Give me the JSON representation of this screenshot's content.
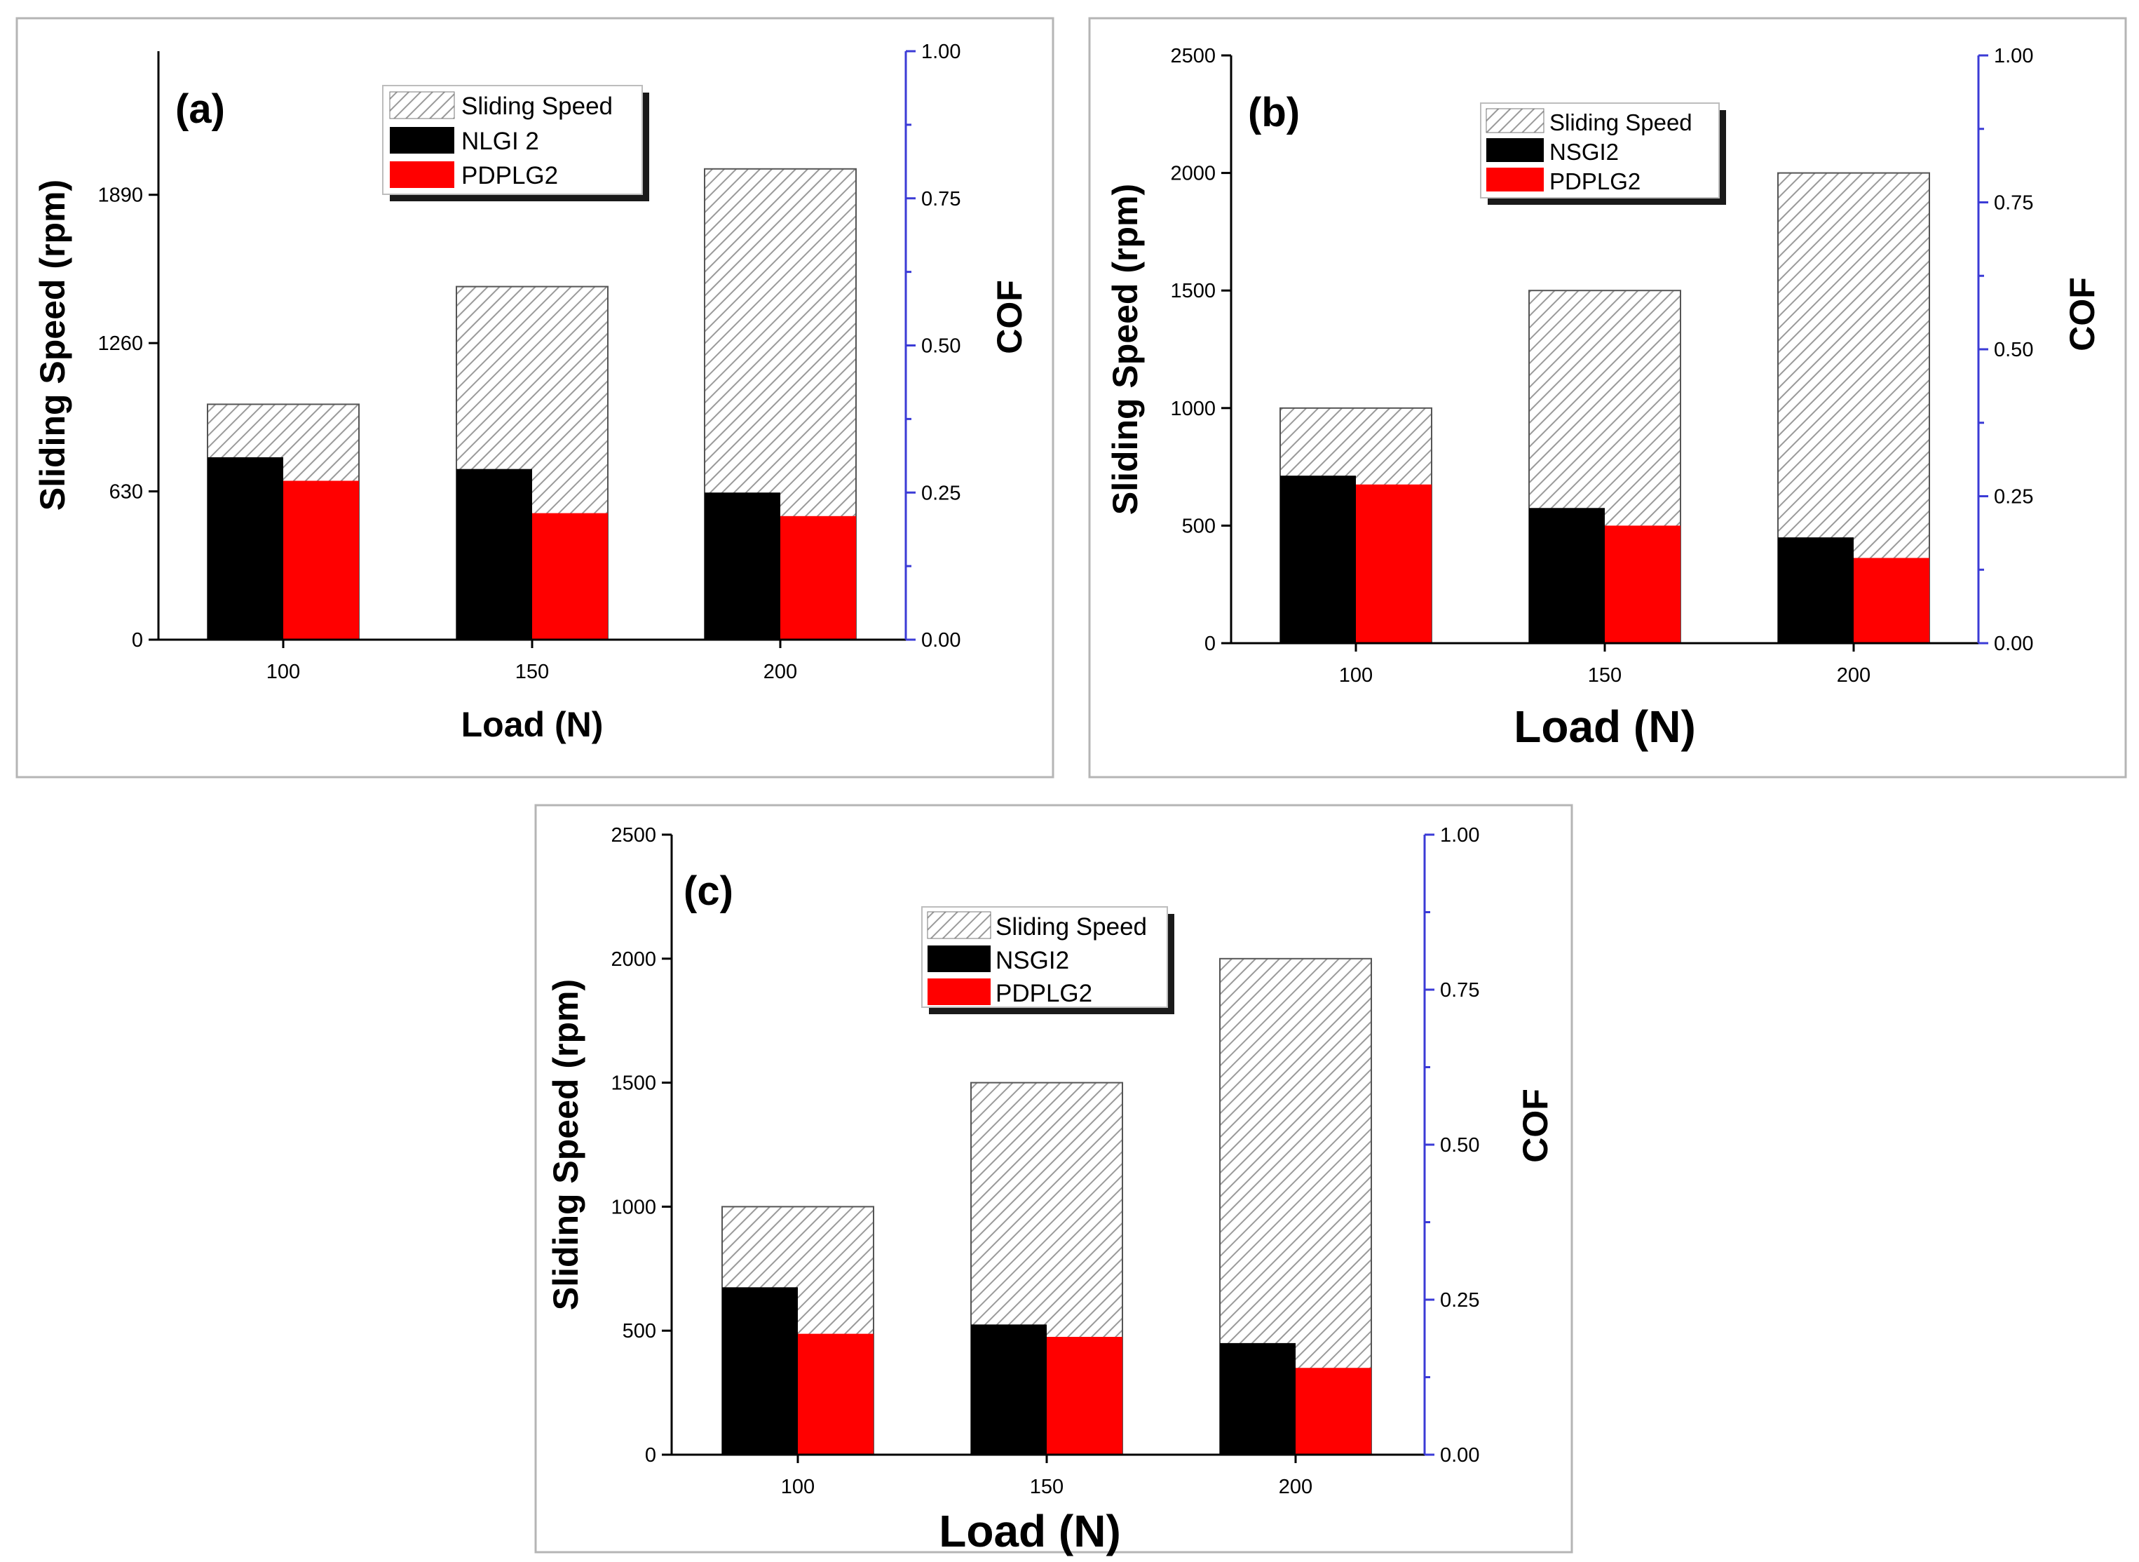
{
  "colors": {
    "speed_hatch": "#9a9a9a",
    "grease_a": "#000000",
    "grease_b": "#ff0000",
    "cof_axis": "#3b3bd6"
  },
  "chart_data": [
    {
      "type": "bar",
      "panel_label": "(a)",
      "categories": [
        "100",
        "150",
        "200"
      ],
      "xlabel": "Load (N)",
      "ylabel": "Sliding Speed (rpm)",
      "y2label": "COF",
      "ylim": [
        0,
        2500
      ],
      "y_ticks": [
        "0",
        "630",
        "1260",
        "1890"
      ],
      "y_tick_values": [
        0,
        630,
        1260,
        1890
      ],
      "y2lim": [
        0,
        1.0
      ],
      "y2_ticks": [
        "0.00",
        "0.25",
        "0.50",
        "0.75",
        "1.00"
      ],
      "y2_tick_values": [
        0,
        0.25,
        0.5,
        0.75,
        1.0
      ],
      "legend": [
        "Sliding Speed",
        "NLGI 2",
        "PDPLG2"
      ],
      "series": [
        {
          "name": "Sliding Speed",
          "axis": "left",
          "values": [
            1000,
            1500,
            2000
          ]
        },
        {
          "name": "NLGI 2",
          "axis": "right",
          "values": [
            0.31,
            0.29,
            0.25
          ]
        },
        {
          "name": "PDPLG2",
          "axis": "right",
          "values": [
            0.27,
            0.215,
            0.21
          ]
        }
      ]
    },
    {
      "type": "bar",
      "panel_label": "(b)",
      "categories": [
        "100",
        "150",
        "200"
      ],
      "xlabel": "Load (N)",
      "ylabel": "Sliding Speed (rpm)",
      "y2label": "COF",
      "ylim": [
        0,
        2500
      ],
      "y_ticks": [
        "0",
        "500",
        "1000",
        "1500",
        "2000",
        "2500"
      ],
      "y_tick_values": [
        0,
        500,
        1000,
        1500,
        2000,
        2500
      ],
      "y2lim": [
        0,
        1.0
      ],
      "y2_ticks": [
        "0.00",
        "0.25",
        "0.50",
        "0.75",
        "1.00"
      ],
      "y2_tick_values": [
        0,
        0.25,
        0.5,
        0.75,
        1.0
      ],
      "legend": [
        "Sliding Speed",
        "NSGI2",
        "PDPLG2"
      ],
      "series": [
        {
          "name": "Sliding Speed",
          "axis": "left",
          "values": [
            1000,
            1500,
            2000
          ]
        },
        {
          "name": "NSGI2",
          "axis": "right",
          "values": [
            0.285,
            0.23,
            0.18
          ]
        },
        {
          "name": "PDPLG2",
          "axis": "right",
          "values": [
            0.27,
            0.2,
            0.145
          ]
        }
      ]
    },
    {
      "type": "bar",
      "panel_label": "(c)",
      "categories": [
        "100",
        "150",
        "200"
      ],
      "xlabel": "Load (N)",
      "ylabel": "Sliding Speed (rpm)",
      "y2label": "COF",
      "ylim": [
        0,
        2500
      ],
      "y_ticks": [
        "0",
        "500",
        "1000",
        "1500",
        "2000",
        "2500"
      ],
      "y_tick_values": [
        0,
        500,
        1000,
        1500,
        2000,
        2500
      ],
      "y2lim": [
        0,
        1.0
      ],
      "y2_ticks": [
        "0.00",
        "0.25",
        "0.50",
        "0.75",
        "1.00"
      ],
      "y2_tick_values": [
        0,
        0.25,
        0.5,
        0.75,
        1.0
      ],
      "legend": [
        "Sliding Speed",
        "NSGI2",
        "PDPLG2"
      ],
      "series": [
        {
          "name": "Sliding Speed",
          "axis": "left",
          "values": [
            1000,
            1500,
            2000
          ]
        },
        {
          "name": "NSGI2",
          "axis": "right",
          "values": [
            0.27,
            0.21,
            0.18
          ]
        },
        {
          "name": "PDPLG2",
          "axis": "right",
          "values": [
            0.195,
            0.19,
            0.14
          ]
        }
      ]
    }
  ]
}
